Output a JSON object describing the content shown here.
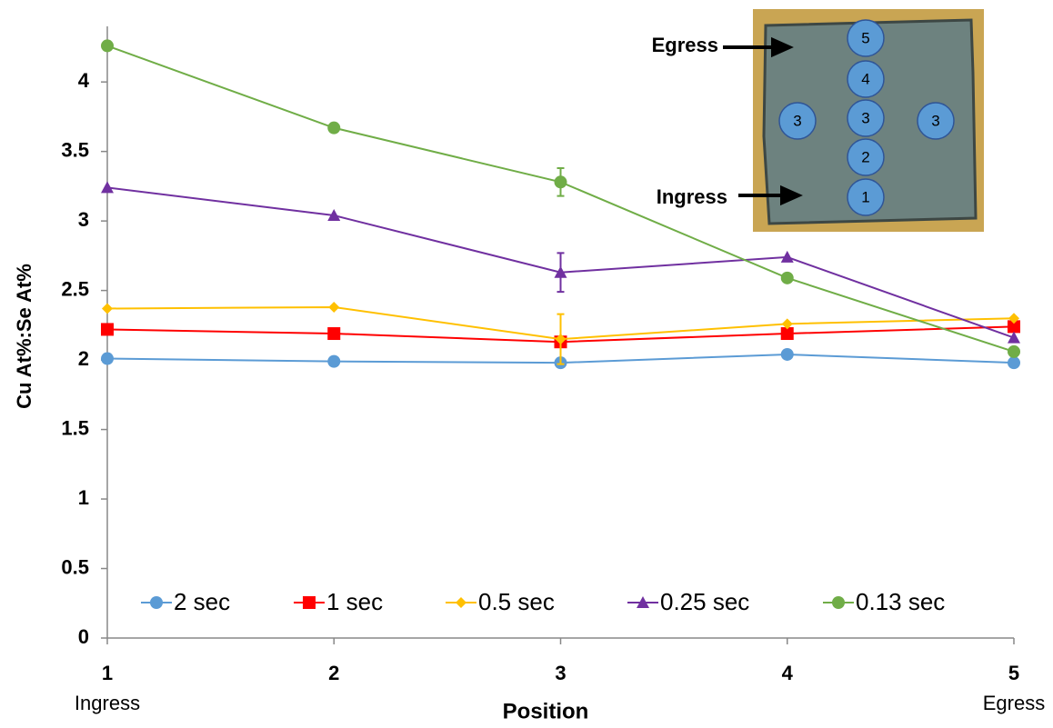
{
  "chart_data": {
    "type": "line",
    "x_label": "Position",
    "y_label": "Cu At%:Se At%",
    "xlim": [
      1,
      5
    ],
    "xticks": [
      1,
      2,
      3,
      4,
      5
    ],
    "x_tick_sublabels": [
      "Ingress",
      null,
      null,
      null,
      "Egress"
    ],
    "ylim": [
      0,
      4.4
    ],
    "yticks": [
      0,
      0.5,
      1,
      1.5,
      2,
      2.5,
      3,
      3.5,
      4
    ],
    "legend": "bottom",
    "x": [
      1,
      2,
      3,
      4,
      5
    ],
    "series": [
      {
        "name": "2 sec",
        "color": "#5b9bd5",
        "marker": "circle",
        "values": [
          2.01,
          1.99,
          1.98,
          2.04,
          1.98
        ],
        "errors": [
          null,
          null,
          null,
          null,
          null
        ]
      },
      {
        "name": "1 sec",
        "color": "#ff0000",
        "marker": "square",
        "values": [
          2.22,
          2.19,
          2.13,
          2.19,
          2.24
        ],
        "errors": [
          null,
          null,
          null,
          null,
          null
        ]
      },
      {
        "name": "0.5 sec",
        "color": "#ffc000",
        "marker": "diamond",
        "values": [
          2.37,
          2.38,
          2.15,
          2.26,
          2.3
        ],
        "errors": [
          null,
          null,
          0.18,
          null,
          null
        ]
      },
      {
        "name": "0.25 sec",
        "color": "#7030a0",
        "marker": "triangle",
        "values": [
          3.24,
          3.04,
          2.63,
          2.74,
          2.16
        ],
        "errors": [
          null,
          null,
          0.14,
          null,
          null
        ]
      },
      {
        "name": "0.13 sec",
        "color": "#70ad47",
        "marker": "circle",
        "values": [
          4.26,
          3.67,
          3.28,
          2.59,
          2.06
        ],
        "errors": [
          null,
          null,
          0.1,
          null,
          null
        ]
      }
    ],
    "inset": {
      "egress_label": "Egress",
      "ingress_label": "Ingress",
      "spots": [
        "5",
        "4",
        "3",
        "3",
        "3",
        "2",
        "1"
      ]
    }
  }
}
